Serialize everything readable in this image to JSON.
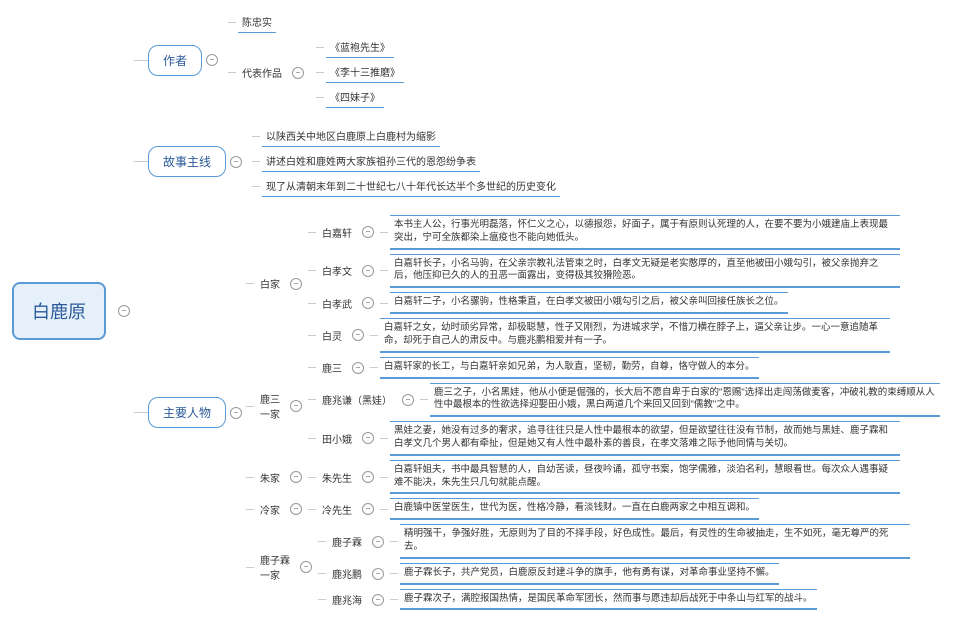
{
  "root": "白鹿原",
  "author": {
    "label": "作者",
    "name": "陈忠实",
    "works_label": "代表作品",
    "works": [
      "《蓝袍先生》",
      "《李十三推磨》",
      "《四妹子》"
    ]
  },
  "storyline": {
    "label": "故事主线",
    "lines": [
      "以陕西关中地区白鹿原上白鹿村为缩影",
      "讲述白姓和鹿姓两大家族祖孙三代的恩怨纷争表",
      "现了从清朝末年到二十世纪七八十年代长达半个多世纪的历史变化"
    ]
  },
  "characters": {
    "label": "主要人物",
    "groups": [
      {
        "name": "白家",
        "people": [
          {
            "name": "白嘉轩",
            "desc": "本书主人公，行事光明磊落，怀仁义之心，以德报怨，好面子，属于有原则认死理的人，在要不要为小娥建庙上表现最突出，宁可全族都染上瘟疫也不能向她低头。"
          },
          {
            "name": "白孝文",
            "desc": "白嘉轩长子，小名马驹，在父亲宗教礼法管束之时，白孝文无疑是老实憨厚的，直至他被田小娥勾引，被父亲抛弃之后，他压抑已久的人的丑恶一面露出，变得极其狡猾险恶。"
          },
          {
            "name": "白孝武",
            "desc": "白嘉轩二子，小名骡驹，性格秉直，在白孝文被田小娥勾引之后，被父亲叫回接任族长之位。"
          },
          {
            "name": "白灵",
            "desc": "白嘉轩之女，幼时顽劣异常，却极聪慧，性子又刚烈，为进城求学，不惜刀横在脖子上，逼父亲让步。一心一意追随革命，却死于自己人的肃反中。与鹿兆鹏相爱并有一子。"
          }
        ]
      },
      {
        "name": "鹿三\n一家",
        "people": [
          {
            "name": "鹿三",
            "desc": "白嘉轩家的长工，与白嘉轩亲如兄弟，为人耿直，坚韧，勤劳，自尊，恪守做人的本分。"
          },
          {
            "name": "鹿兆谦（黑娃）",
            "desc": "鹿三之子，小名黑娃，他从小便是倔强的，长大后不愿自卑于白家的\"恩赐\"选择出走闯荡做麦客，冲破礼教的束缚顺从人性中最根本的性欲选择迎娶田小娥，黑白两道几个来回又回到\"儒教\"之中。"
          },
          {
            "name": "田小娥",
            "desc": "黑娃之妻，她没有过多的奢求，追寻往往只是人性中最根本的欲望，但是欲望往往没有节制，故而她与黑娃、鹿子霖和白孝文几个男人都有牵扯，但是她又有人性中最朴素的善良，在孝文落难之际予他同情与关切。"
          }
        ]
      },
      {
        "name": "朱家",
        "people": [
          {
            "name": "朱先生",
            "desc": "白嘉轩姐夫，书中最具智慧的人，自幼苦读，昼夜吟诵，孤守书案，饱学儒雅，淡泊名利，慧眼看世。每次众人遇事疑难不能决，朱先生只几句就能点醒。"
          }
        ]
      },
      {
        "name": "冷家",
        "people": [
          {
            "name": "冷先生",
            "desc": "白鹿镇中医堂医生，世代为医，性格冷静，看淡钱财。一直在白鹿两家之中相互调和。"
          }
        ]
      },
      {
        "name": "鹿子霖\n一家",
        "people": [
          {
            "name": "鹿子霖",
            "desc": "精明强干，争强好胜，无原则为了目的不择手段，好色成性。最后，有灵性的生命被抽走，生不如死，毫无尊严的死去。"
          },
          {
            "name": "鹿兆鹏",
            "desc": "鹿子霖长子，共产党员，白鹿原反封建斗争的旗手，他有勇有谋，对革命事业坚持不懈。"
          },
          {
            "name": "鹿兆海",
            "desc": "鹿子霖次子，满腔报国热情，是国民革命军团长，然而事与愿违却后战死于中条山与红军的战斗。"
          }
        ]
      }
    ]
  }
}
